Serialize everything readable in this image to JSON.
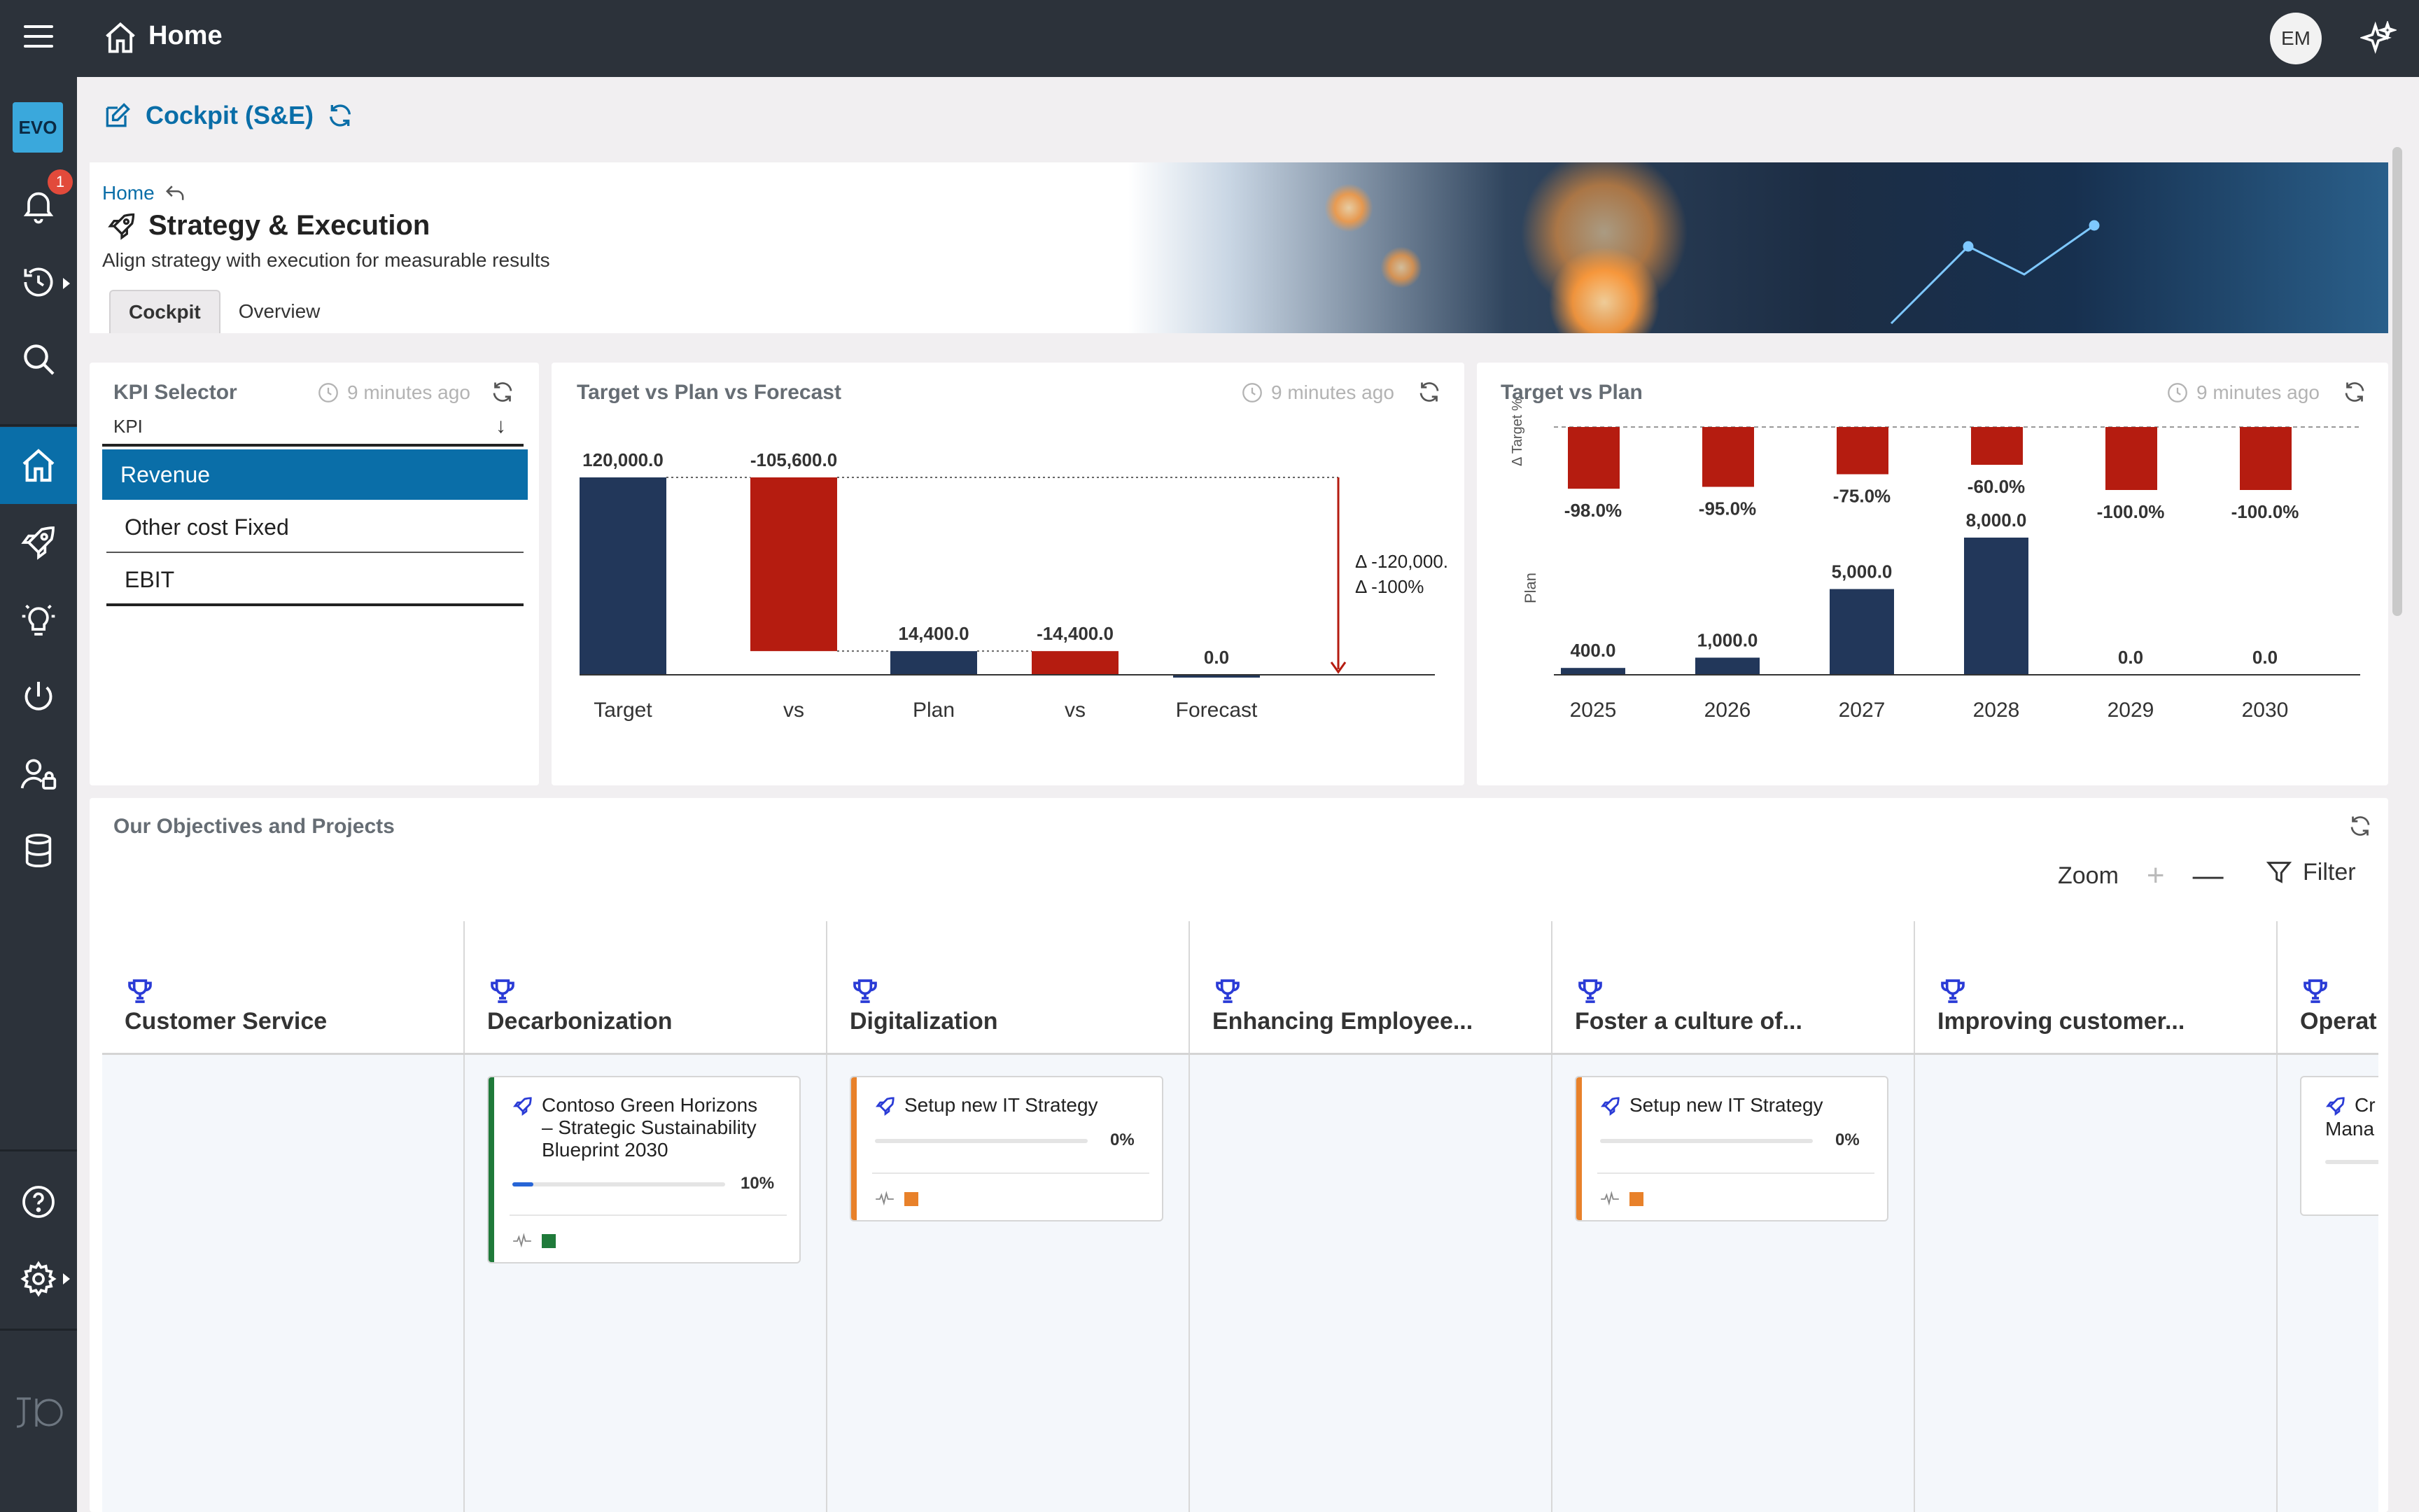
{
  "topbar": {
    "title": "Home",
    "avatar_initials": "EM"
  },
  "sidebar": {
    "logo": "EVO",
    "notifications_count": "1",
    "items": [
      "bell-icon",
      "history-icon",
      "search-icon",
      "home-icon",
      "rocket-icon",
      "lightbulb-icon",
      "power-icon",
      "user-lock-icon",
      "database-icon",
      "help-icon",
      "gear-icon"
    ]
  },
  "page": {
    "title": "Cockpit (S&E)"
  },
  "banner": {
    "breadcrumb": "Home",
    "title": "Strategy & Execution",
    "subtitle": "Align strategy with execution for measurable results",
    "tabs": [
      {
        "label": "Cockpit",
        "active": true
      },
      {
        "label": "Overview",
        "active": false
      }
    ]
  },
  "kpi_selector": {
    "title": "KPI Selector",
    "updated": "9 minutes ago",
    "column_label": "KPI",
    "options": [
      {
        "label": "Revenue",
        "selected": true
      },
      {
        "label": "Other cost Fixed",
        "selected": false
      },
      {
        "label": "EBIT",
        "selected": false
      }
    ]
  },
  "waterfall": {
    "title": "Target vs Plan vs Forecast",
    "updated": "9 minutes ago",
    "delta_abs": "Δ -120,000.",
    "delta_pct": "Δ -100%"
  },
  "target_plan": {
    "title": "Target vs Plan",
    "updated": "9 minutes ago",
    "axis_top": "Δ Target %",
    "axis_bottom": "Plan"
  },
  "chart_data": [
    {
      "type": "bar",
      "subtype": "waterfall",
      "title": "Target vs Plan vs Forecast",
      "categories": [
        "Target",
        "vs",
        "Plan",
        "vs",
        "Forecast"
      ],
      "values": [
        120000,
        -105600,
        14400,
        -14400,
        0
      ],
      "labels": [
        "120,000.0",
        "-105,600.0",
        "14,400.0",
        "-14,400.0",
        "0.0"
      ],
      "colors": [
        "#22375a",
        "#b51c10",
        "#22375a",
        "#b51c10",
        "#22375a"
      ],
      "annotation": [
        "Δ -120,000.",
        "Δ -100%"
      ]
    },
    {
      "type": "bar",
      "title": "Target vs Plan",
      "categories": [
        "2025",
        "2026",
        "2027",
        "2028",
        "2029",
        "2030"
      ],
      "series": [
        {
          "name": "Δ Target %",
          "values": [
            -98.0,
            -95.0,
            -75.0,
            -60.0,
            -100.0,
            -100.0
          ],
          "labels": [
            "-98.0%",
            "-95.0%",
            "-75.0%",
            "-60.0%",
            "-100.0%",
            "-100.0%"
          ],
          "color": "#b51c10"
        },
        {
          "name": "Plan",
          "values": [
            400,
            1000,
            5000,
            8000,
            0,
            0
          ],
          "labels": [
            "400.0",
            "1,000.0",
            "5,000.0",
            "8,000.0",
            "0.0",
            "0.0"
          ],
          "color": "#22375a"
        }
      ]
    }
  ],
  "objectives": {
    "title": "Our Objectives and Projects",
    "zoom_label": "Zoom",
    "filter_label": "Filter",
    "columns": [
      {
        "name": "Customer Service"
      },
      {
        "name": "Decarbonization"
      },
      {
        "name": "Digitalization"
      },
      {
        "name": "Enhancing Employee..."
      },
      {
        "name": "Foster a culture of..."
      },
      {
        "name": "Improving customer..."
      },
      {
        "name": "Operat"
      }
    ],
    "projects": [
      {
        "title_lines": [
          "Contoso Green Horizons",
          "– Strategic Sustainability",
          "Blueprint 2030"
        ],
        "progress": 0.1,
        "pct": "10%",
        "accent": "#1f7a3a",
        "status": "#1f7a3a"
      },
      {
        "title_lines": [
          "Setup new IT Strategy"
        ],
        "progress": 0.0,
        "pct": "0%",
        "accent": "#e8812a",
        "status": "#e8812a"
      },
      {
        "title_lines": [
          "Setup new IT Strategy"
        ],
        "progress": 0.0,
        "pct": "0%",
        "accent": "#e8812a",
        "status": "#e8812a"
      },
      {
        "title_lines": [
          "Cr",
          "Mana"
        ],
        "progress": 0.0,
        "pct": "",
        "accent": "#d6d6d6",
        "status": ""
      }
    ]
  }
}
